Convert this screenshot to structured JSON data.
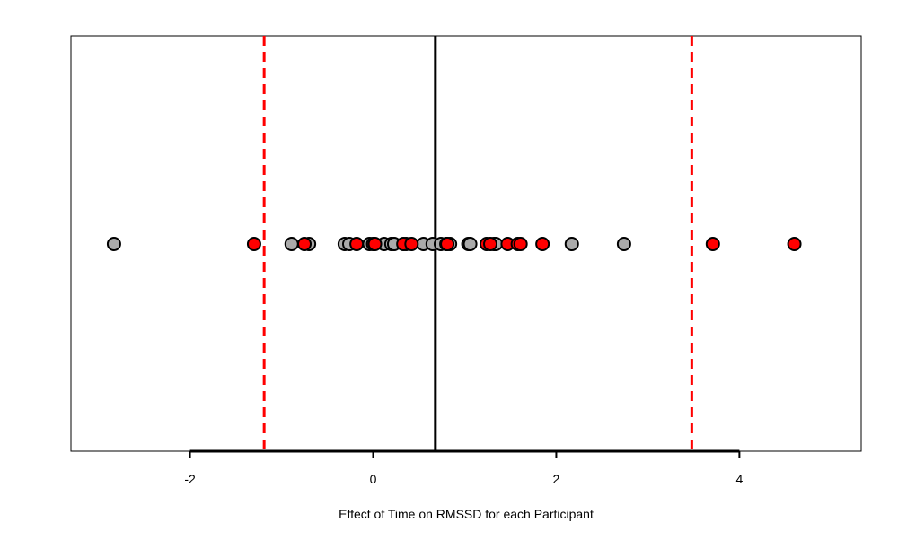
{
  "chart_data": {
    "type": "scatter",
    "title": "",
    "xlabel": "Effect of Time on RMSSD for each Participant",
    "ylabel": "",
    "xlim": [
      -3.3,
      5.33
    ],
    "x_ticks": [
      -2,
      0,
      2,
      4
    ],
    "x_tick_labels": [
      "-2",
      "0",
      "2",
      "4"
    ],
    "grid": false,
    "legend": "none",
    "reference_lines": {
      "mean": {
        "value": 0.68,
        "color": "#000000",
        "style": "solid"
      },
      "limits": [
        {
          "value": -1.19,
          "color": "#ff0000",
          "style": "dashed"
        },
        {
          "value": 3.48,
          "color": "#ff0000",
          "style": "dashed"
        }
      ]
    },
    "series": [
      {
        "color": "#aaaaaa",
        "x": [
          -2.83,
          -0.89,
          -0.7,
          -0.31,
          -0.26,
          -0.04,
          0.12,
          0.2,
          0.23,
          0.36,
          0.55,
          0.65,
          0.74,
          0.8,
          0.84,
          1.04,
          1.06,
          1.32,
          1.34,
          2.17,
          2.74
        ]
      },
      {
        "color": "#ff0000",
        "x": [
          -1.3,
          -0.75,
          -0.18,
          0.0,
          0.02,
          0.33,
          0.42,
          0.81,
          1.24,
          1.28,
          1.47,
          1.58,
          1.61,
          1.85,
          3.71,
          4.6
        ]
      }
    ]
  }
}
